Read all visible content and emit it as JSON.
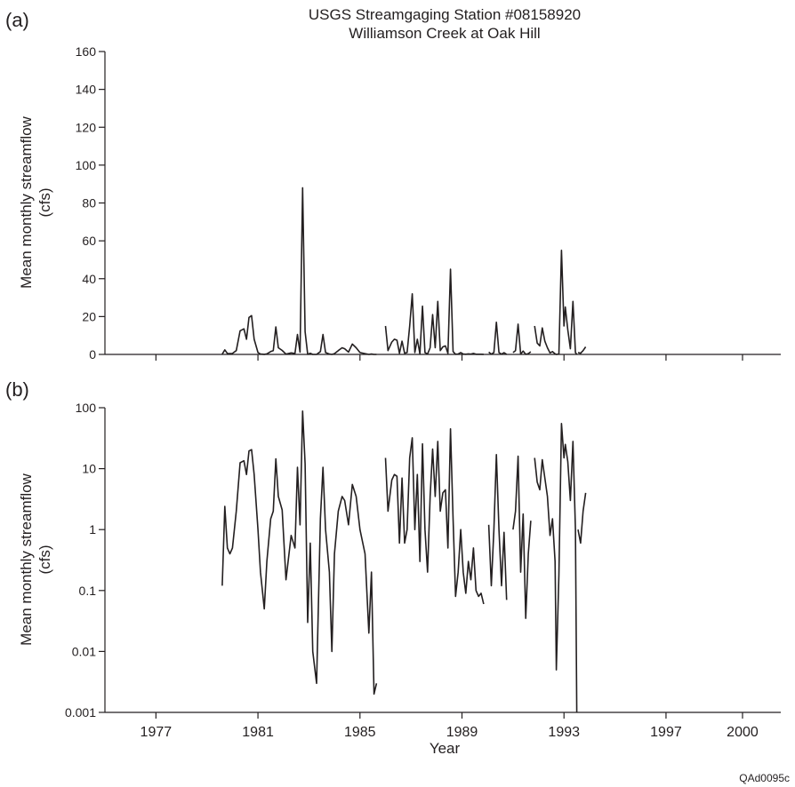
{
  "figure": {
    "title_line1": "USGS Streamgaging Station #08158920",
    "title_line2": "Williamson Creek at Oak Hill",
    "xlabel": "Year",
    "code": "QAd0095c",
    "line_color": "#231f20"
  },
  "chart_data": [
    {
      "type": "line",
      "panel_label": "(a)",
      "ylabel_line1": "Mean monthly streamflow",
      "ylabel_line2": "(cfs)",
      "yscale": "linear",
      "ylim": [
        0,
        160
      ],
      "yticks": [
        0,
        20,
        40,
        60,
        80,
        100,
        120,
        140,
        160
      ],
      "xlim": [
        1975.0,
        2001.5
      ],
      "grid": false,
      "series": [
        {
          "segments": [
            [
              [
                1979.6,
                0.12
              ],
              [
                1979.7,
                2.4
              ],
              [
                1979.8,
                0.5
              ],
              [
                1979.9,
                0.4
              ],
              [
                1980.0,
                0.5
              ],
              [
                1980.15,
                2.0
              ],
              [
                1980.3,
                12.5
              ],
              [
                1980.45,
                13.5
              ],
              [
                1980.55,
                8.0
              ],
              [
                1980.65,
                19.5
              ],
              [
                1980.75,
                20.5
              ],
              [
                1980.85,
                8.0
              ],
              [
                1981.0,
                1.0
              ],
              [
                1981.1,
                0.2
              ],
              [
                1981.25,
                0.05
              ],
              [
                1981.35,
                0.3
              ],
              [
                1981.5,
                1.5
              ],
              [
                1981.6,
                2.0
              ],
              [
                1981.7,
                14.5
              ],
              [
                1981.8,
                3.5
              ],
              [
                1981.95,
                2.1
              ],
              [
                1982.1,
                0.15
              ],
              [
                1982.3,
                0.8
              ],
              [
                1982.45,
                0.5
              ],
              [
                1982.55,
                10.5
              ],
              [
                1982.65,
                1.2
              ],
              [
                1982.75,
                88.0
              ],
              [
                1982.85,
                12.0
              ],
              [
                1982.95,
                0.03
              ],
              [
                1983.05,
                0.6
              ],
              [
                1983.15,
                0.01
              ],
              [
                1983.3,
                0.003
              ],
              [
                1983.45,
                1.5
              ],
              [
                1983.55,
                10.5
              ],
              [
                1983.65,
                1.0
              ],
              [
                1983.8,
                0.2
              ],
              [
                1983.9,
                0.01
              ],
              [
                1984.0,
                0.4
              ],
              [
                1984.15,
                2.0
              ],
              [
                1984.3,
                3.5
              ],
              [
                1984.4,
                3.0
              ],
              [
                1984.55,
                1.2
              ],
              [
                1984.7,
                5.5
              ],
              [
                1984.85,
                3.5
              ],
              [
                1985.0,
                1.0
              ],
              [
                1985.2,
                0.4
              ],
              [
                1985.35,
                0.02
              ],
              [
                1985.45,
                0.2
              ],
              [
                1985.55,
                0.002
              ],
              [
                1985.65,
                0.003
              ]
            ],
            [
              [
                1986.0,
                15.0
              ],
              [
                1986.1,
                2.0
              ],
              [
                1986.25,
                6.5
              ],
              [
                1986.35,
                8.0
              ],
              [
                1986.45,
                7.5
              ],
              [
                1986.55,
                0.6
              ],
              [
                1986.65,
                7.0
              ],
              [
                1986.75,
                0.6
              ],
              [
                1986.85,
                1.0
              ],
              [
                1986.95,
                15.0
              ],
              [
                1987.05,
                32.0
              ],
              [
                1987.15,
                1.0
              ],
              [
                1987.25,
                8.0
              ],
              [
                1987.35,
                0.3
              ],
              [
                1987.45,
                25.5
              ],
              [
                1987.55,
                1.0
              ],
              [
                1987.65,
                0.2
              ],
              [
                1987.75,
                3.5
              ],
              [
                1987.85,
                21.0
              ],
              [
                1987.95,
                3.5
              ],
              [
                1988.05,
                28.0
              ],
              [
                1988.15,
                2.0
              ],
              [
                1988.25,
                4.0
              ],
              [
                1988.35,
                4.5
              ],
              [
                1988.45,
                0.5
              ],
              [
                1988.55,
                45.0
              ],
              [
                1988.65,
                1.5
              ],
              [
                1988.75,
                0.08
              ],
              [
                1988.85,
                0.2
              ],
              [
                1988.95,
                1.0
              ],
              [
                1989.05,
                0.2
              ],
              [
                1989.15,
                0.09
              ],
              [
                1989.25,
                0.3
              ],
              [
                1989.35,
                0.15
              ],
              [
                1989.45,
                0.5
              ],
              [
                1989.55,
                0.1
              ],
              [
                1989.65,
                0.08
              ],
              [
                1989.75,
                0.09
              ],
              [
                1989.85,
                0.06
              ]
            ],
            [
              [
                1990.05,
                1.2
              ],
              [
                1990.15,
                0.12
              ],
              [
                1990.25,
                1.0
              ],
              [
                1990.35,
                17.0
              ],
              [
                1990.45,
                1.0
              ],
              [
                1990.55,
                0.12
              ],
              [
                1990.65,
                0.9
              ],
              [
                1990.75,
                0.07
              ]
            ],
            [
              [
                1991.0,
                1.0
              ],
              [
                1991.1,
                2.0
              ],
              [
                1991.2,
                16.0
              ],
              [
                1991.3,
                0.2
              ],
              [
                1991.4,
                1.8
              ],
              [
                1991.5,
                0.035
              ],
              [
                1991.6,
                0.4
              ],
              [
                1991.7,
                1.4
              ]
            ],
            [
              [
                1991.85,
                15.0
              ],
              [
                1991.95,
                6.0
              ],
              [
                1992.05,
                4.5
              ],
              [
                1992.15,
                14.0
              ],
              [
                1992.25,
                7.0
              ],
              [
                1992.35,
                3.5
              ],
              [
                1992.45,
                0.8
              ],
              [
                1992.55,
                1.5
              ],
              [
                1992.65,
                0.3
              ],
              [
                1992.7,
                0.005
              ],
              [
                1992.8,
                0.18
              ],
              [
                1992.9,
                55.0
              ],
              [
                1993.0,
                15.0
              ],
              [
                1993.05,
                25.0
              ],
              [
                1993.15,
                13.0
              ],
              [
                1993.25,
                3.0
              ],
              [
                1993.35,
                28.0
              ],
              [
                1993.45,
                1.0
              ],
              [
                1993.5,
                0.0005
              ]
            ],
            [
              [
                1993.55,
                1.0
              ],
              [
                1993.65,
                0.6
              ],
              [
                1993.75,
                2.0
              ],
              [
                1993.85,
                4.0
              ]
            ]
          ]
        }
      ]
    },
    {
      "type": "line",
      "panel_label": "(b)",
      "ylabel_line1": "Mean monthly streamflow",
      "ylabel_line2": "(cfs)",
      "yscale": "log",
      "ylim": [
        0.001,
        100
      ],
      "yticks": [
        0.001,
        0.01,
        0.1,
        1,
        10,
        100
      ],
      "yticklabels": [
        "0.001",
        "0.01",
        "0.1",
        "1",
        "10",
        "100"
      ],
      "xlim": [
        1975.0,
        2001.5
      ],
      "xticks": [
        1977,
        1981,
        1985,
        1989,
        1993,
        1997,
        2000
      ],
      "xticklabels": [
        "1977",
        "1981",
        "1985",
        "1989",
        "1993",
        "1997",
        "2000"
      ],
      "grid": false,
      "series_ref": "same data as panel (a)"
    }
  ]
}
